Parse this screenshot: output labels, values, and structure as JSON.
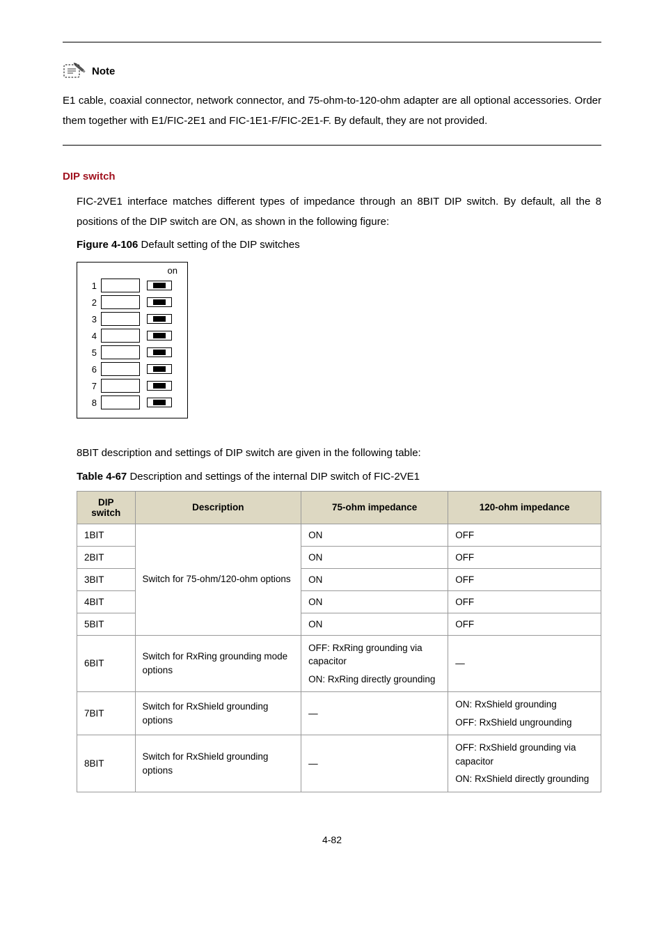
{
  "note": {
    "label": "Note",
    "body": "E1 cable, coaxial connector, network connector, and 75-ohm-to-120-ohm adapter are all optional accessories. Order them together with E1/FIC-2E1 and FIC-1E1-F/FIC-2E1-F. By default, they are not provided."
  },
  "section": {
    "heading": "DIP switch",
    "heading_color": "#a0111e",
    "body": "FIC-2VE1 interface matches different types of impedance through an 8BIT DIP switch. By default, all the 8 positions of the DIP switch are ON, as shown in the following figure:"
  },
  "figure": {
    "prefix": "Figure 4-106",
    "caption": "Default setting of the DIP switches",
    "on_label": "on",
    "rows": [
      "1",
      "2",
      "3",
      "4",
      "5",
      "6",
      "7",
      "8"
    ]
  },
  "between": "8BIT description and settings of DIP switch are given in the following table:",
  "table": {
    "prefix": "Table 4-67",
    "caption": "Description and settings of the internal DIP switch of FIC-2VE1",
    "headers": [
      "DIP switch",
      "Description",
      "75-ohm impedance",
      "120-ohm impedance"
    ],
    "col_widths": [
      "25%",
      "25%",
      "25%",
      "25%"
    ],
    "header_bg": "#ddd8c2",
    "rows": [
      {
        "dip": "1BIT",
        "desc_group": "Switch for 75-ohm/120-ohm options",
        "c75": "ON",
        "c120": "OFF"
      },
      {
        "dip": "2BIT",
        "c75": "ON",
        "c120": "OFF"
      },
      {
        "dip": "3BIT",
        "c75": "ON",
        "c120": "OFF"
      },
      {
        "dip": "4BIT",
        "c75": "ON",
        "c120": "OFF"
      },
      {
        "dip": "5BIT",
        "c75": "ON",
        "c120": "OFF"
      },
      {
        "dip": "6BIT",
        "desc": "Switch for RxRing grounding mode options",
        "c75_lines": [
          "OFF: RxRing grounding via capacitor",
          "ON: RxRing directly grounding"
        ],
        "c120": "—"
      },
      {
        "dip": "7BIT",
        "desc": "Switch for RxShield grounding options",
        "c75": "—",
        "c120_lines": [
          "ON: RxShield grounding",
          "OFF: RxShield ungrounding"
        ]
      },
      {
        "dip": "8BIT",
        "desc": "Switch for RxShield grounding options",
        "c75": "—",
        "c120_lines": [
          "OFF: RxShield grounding via capacitor",
          "ON: RxShield directly grounding"
        ]
      }
    ]
  },
  "page_number": "4-82"
}
